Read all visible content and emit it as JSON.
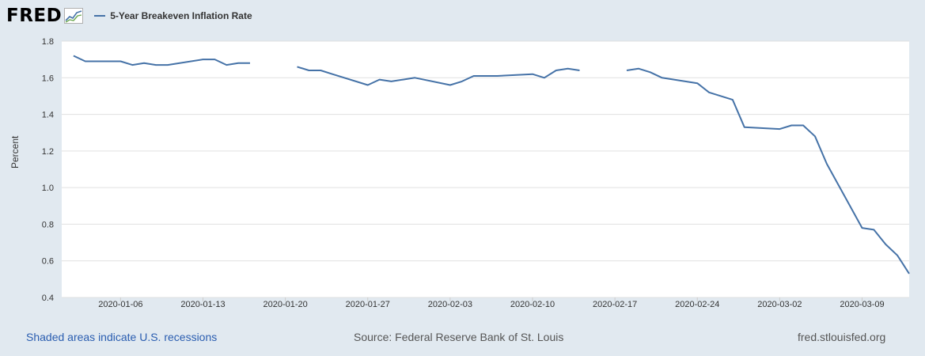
{
  "brand": {
    "logo_text": "FRED",
    "logo_icon": "chart-line-icon"
  },
  "legend": {
    "label": "5-Year Breakeven Inflation Rate",
    "color": "#4572a7"
  },
  "footer": {
    "recession_note": "Shaded areas indicate U.S. recessions",
    "source": "Source: Federal Reserve Bank of St. Louis",
    "site": "fred.stlouisfed.org"
  },
  "chart_data": {
    "type": "line",
    "title": "",
    "xlabel": "",
    "ylabel": "Percent",
    "ylim": [
      0.4,
      1.8
    ],
    "xlim": [
      "2020-01-01",
      "2020-03-13"
    ],
    "yticks": [
      "0.4",
      "0.6",
      "0.8",
      "1.0",
      "1.2",
      "1.4",
      "1.6",
      "1.8"
    ],
    "xticks": [
      "2020-01-06",
      "2020-01-13",
      "2020-01-20",
      "2020-01-27",
      "2020-02-03",
      "2020-02-10",
      "2020-02-17",
      "2020-02-24",
      "2020-03-02",
      "2020-03-09"
    ],
    "grid": true,
    "series": [
      {
        "name": "5-Year Breakeven Inflation Rate",
        "color": "#4572a7",
        "x": [
          "2020-01-02",
          "2020-01-03",
          "2020-01-06",
          "2020-01-07",
          "2020-01-08",
          "2020-01-09",
          "2020-01-10",
          "2020-01-13",
          "2020-01-14",
          "2020-01-15",
          "2020-01-16",
          "2020-01-17",
          "2020-01-20",
          "2020-01-21",
          "2020-01-22",
          "2020-01-23",
          "2020-01-24",
          "2020-01-27",
          "2020-01-28",
          "2020-01-29",
          "2020-01-30",
          "2020-01-31",
          "2020-02-03",
          "2020-02-04",
          "2020-02-05",
          "2020-02-06",
          "2020-02-07",
          "2020-02-10",
          "2020-02-11",
          "2020-02-12",
          "2020-02-13",
          "2020-02-14",
          "2020-02-17",
          "2020-02-18",
          "2020-02-19",
          "2020-02-20",
          "2020-02-21",
          "2020-02-24",
          "2020-02-25",
          "2020-02-26",
          "2020-02-27",
          "2020-02-28",
          "2020-03-02",
          "2020-03-03",
          "2020-03-04",
          "2020-03-05",
          "2020-03-06",
          "2020-03-09",
          "2020-03-10",
          "2020-03-11",
          "2020-03-12",
          "2020-03-13"
        ],
        "y": [
          1.72,
          1.69,
          1.69,
          1.67,
          1.68,
          1.67,
          1.67,
          1.7,
          1.7,
          1.67,
          1.68,
          1.68,
          null,
          1.66,
          1.64,
          1.64,
          1.62,
          1.56,
          1.59,
          1.58,
          1.59,
          1.6,
          1.56,
          1.58,
          1.61,
          1.61,
          1.61,
          1.62,
          1.6,
          1.64,
          1.65,
          1.64,
          null,
          1.64,
          1.65,
          1.63,
          1.6,
          1.57,
          1.52,
          1.5,
          1.48,
          1.33,
          1.32,
          1.34,
          1.34,
          1.28,
          1.13,
          0.78,
          0.77,
          0.69,
          0.63,
          0.53
        ]
      }
    ]
  }
}
